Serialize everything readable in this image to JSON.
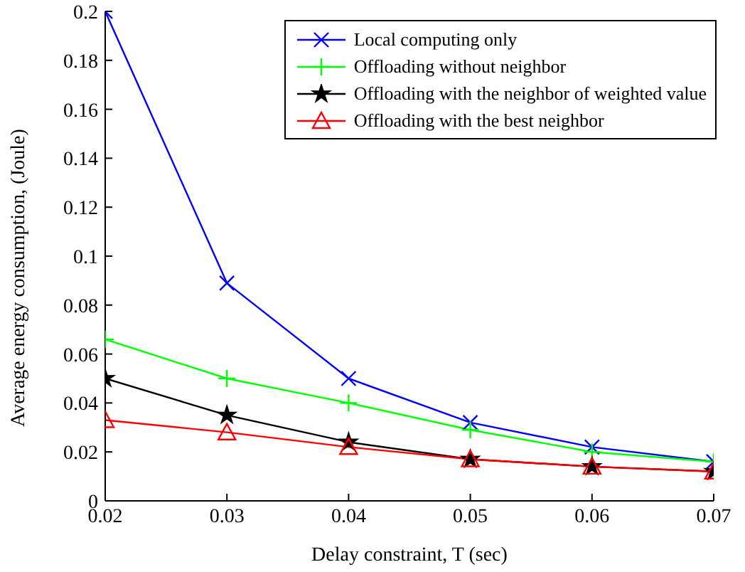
{
  "chart_data": {
    "type": "line",
    "xlabel": "Delay constraint, T (sec)",
    "ylabel": "Average energy consumption, (Joule)",
    "x": [
      0.02,
      0.03,
      0.04,
      0.05,
      0.06,
      0.07
    ],
    "xlim": [
      0.02,
      0.07
    ],
    "xticks": [
      0.02,
      0.03,
      0.04,
      0.05,
      0.06,
      0.07
    ],
    "ylim": [
      0,
      0.2
    ],
    "yticks": [
      0,
      0.02,
      0.04,
      0.06,
      0.08,
      0.1,
      0.12,
      0.14,
      0.16,
      0.18,
      0.2
    ],
    "grid": false,
    "legend": "top right",
    "line_style": "solid",
    "series": [
      {
        "name": "Local computing only",
        "color": "#0000ff",
        "marker": "cross",
        "values": [
          0.2,
          0.089,
          0.05,
          0.032,
          0.022,
          0.016
        ]
      },
      {
        "name": "Offloading without neighbor",
        "color": "#00ff00",
        "marker": "plus",
        "values": [
          0.066,
          0.05,
          0.04,
          0.029,
          0.02,
          0.016
        ]
      },
      {
        "name": "Offloading with the neighbor of weighted value",
        "color": "#000000",
        "marker": "star",
        "values": [
          0.05,
          0.035,
          0.024,
          0.017,
          0.014,
          0.012
        ]
      },
      {
        "name": "Offloading with the best neighbor",
        "color": "#ff0000",
        "marker": "triangle",
        "values": [
          0.033,
          0.028,
          0.022,
          0.017,
          0.014,
          0.012
        ]
      }
    ]
  }
}
